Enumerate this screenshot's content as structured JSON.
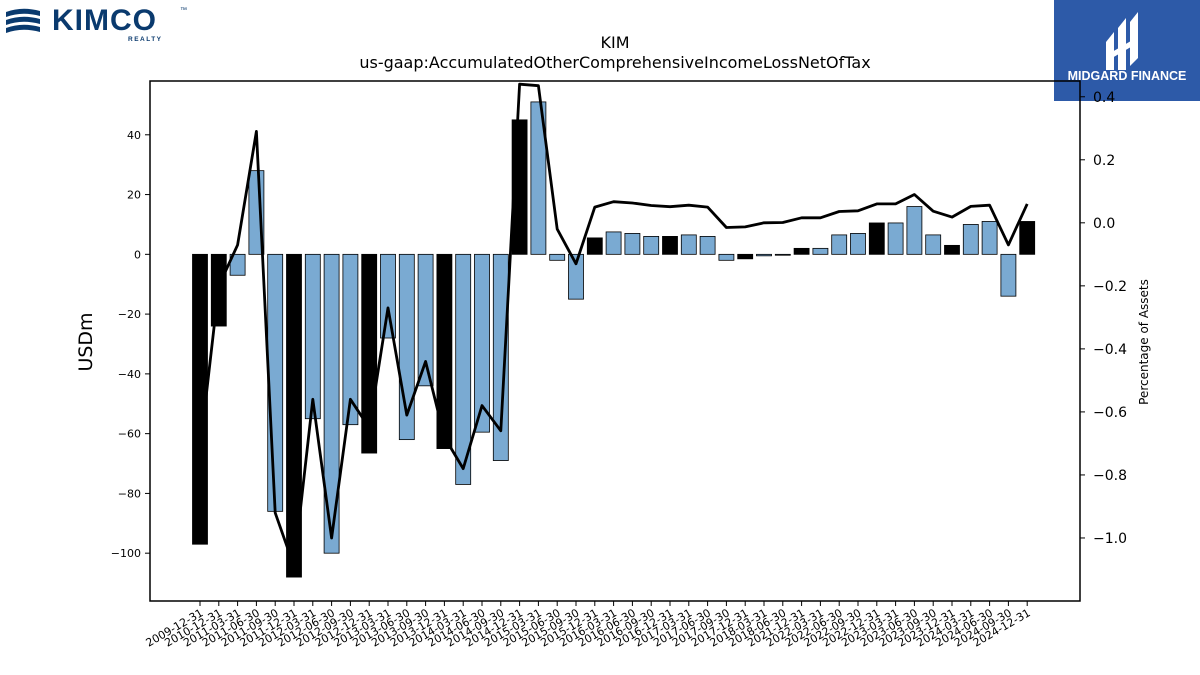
{
  "brand_left": {
    "name": "KIMCO",
    "tm": "™",
    "sub": "REALTY",
    "color": "#0a3a6e"
  },
  "brand_right": {
    "name": "MIDGARD FINANCE",
    "bg": "#2d5aa8"
  },
  "chart_data": {
    "type": "bar",
    "title": "KIM",
    "subtitle": "us-gaap:AccumulatedOtherComprehensiveIncomeLossNetOfTax",
    "ylabel": "USDm",
    "y2label": "Percentage of Assets",
    "ylim": [
      -116,
      58
    ],
    "y2lim": [
      -1.2,
      0.45
    ],
    "yticks": [
      40,
      20,
      0,
      -20,
      -40,
      -60,
      -80,
      -100
    ],
    "y2ticks": [
      0.4,
      0.2,
      0.0,
      -0.2,
      -0.4,
      -0.6,
      -0.8,
      -1.0
    ],
    "categories": [
      "2009-12-31",
      "2010-12-31",
      "2011-03-31",
      "2011-06-30",
      "2011-09-30",
      "2011-12-31",
      "2012-03-31",
      "2012-06-30",
      "2012-09-30",
      "2012-12-31",
      "2013-03-31",
      "2013-06-30",
      "2013-09-30",
      "2013-12-31",
      "2014-03-31",
      "2014-06-30",
      "2014-09-30",
      "2014-12-31",
      "2015-03-31",
      "2015-06-30",
      "2015-09-30",
      "2015-12-31",
      "2016-03-31",
      "2016-06-30",
      "2016-09-30",
      "2016-12-31",
      "2017-03-31",
      "2017-06-30",
      "2017-09-30",
      "2017-12-31",
      "2018-03-31",
      "2018-06-30",
      "2021-12-31",
      "2022-03-31",
      "2022-06-30",
      "2022-09-30",
      "2022-12-31",
      "2023-03-31",
      "2023-06-30",
      "2023-09-30",
      "2023-12-31",
      "2024-03-31",
      "2024-06-30",
      "2024-09-30",
      "2024-12-31"
    ],
    "values": [
      -97,
      -24,
      -7,
      28,
      -86,
      -108,
      -55,
      -100,
      -57,
      -66.5,
      -28,
      -62,
      -44,
      -65,
      -77,
      -59.5,
      -69,
      45,
      51,
      -2,
      -15,
      5.5,
      7.5,
      7,
      6,
      6,
      6.5,
      6,
      -2,
      -1.5,
      -0.5,
      -0.3,
      2,
      2,
      6.5,
      7,
      10.5,
      10.5,
      16,
      6.5,
      3,
      10,
      11,
      -14,
      11
    ],
    "annual": [
      true,
      true,
      false,
      false,
      false,
      true,
      false,
      false,
      false,
      true,
      false,
      false,
      false,
      true,
      false,
      false,
      false,
      true,
      false,
      false,
      false,
      true,
      false,
      false,
      false,
      true,
      false,
      false,
      false,
      true,
      false,
      false,
      true,
      false,
      false,
      false,
      true,
      false,
      false,
      false,
      true,
      false,
      false,
      false,
      true
    ],
    "pct_of_assets": [
      -0.72,
      -0.2,
      -0.07,
      0.29,
      -0.92,
      -1.09,
      -0.56,
      -1.0,
      -0.56,
      -0.65,
      -0.27,
      -0.61,
      -0.44,
      -0.68,
      -0.78,
      -0.58,
      -0.66,
      0.44,
      0.435,
      -0.02,
      -0.13,
      0.05,
      0.067,
      0.063,
      0.055,
      0.051,
      0.056,
      0.05,
      -0.015,
      -0.013,
      0.0,
      0.001,
      0.016,
      0.016,
      0.036,
      0.038,
      0.06,
      0.06,
      0.09,
      0.037,
      0.018,
      0.052,
      0.056,
      -0.07,
      0.06
    ],
    "colors": {
      "annual_bar": "#000000",
      "quarterly_bar": "#7aaad2",
      "line": "#000000"
    },
    "grid": false,
    "legend": "none"
  }
}
